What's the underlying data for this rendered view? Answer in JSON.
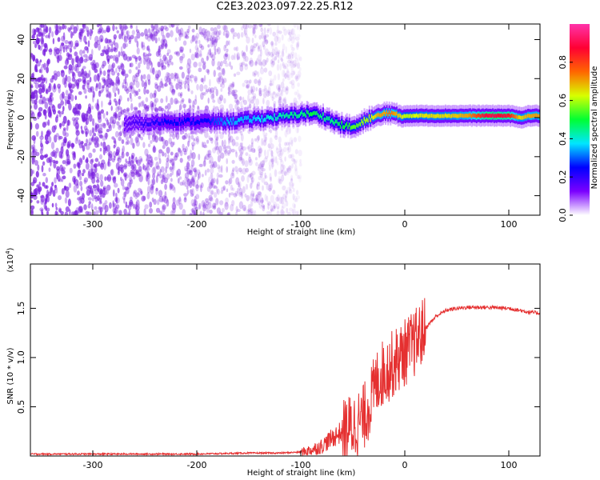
{
  "title": "C2E3.2023.097.22.25.R12",
  "colors": {
    "snr_line": "#e53030",
    "speckle": "#7a1fe0",
    "colormap": [
      "#ffffff",
      "#7b00ff",
      "#0000ff",
      "#00e6ff",
      "#00ff33",
      "#d8ff00",
      "#ff6600",
      "#ff0033",
      "#ff33aa"
    ]
  },
  "chart_data": [
    {
      "type": "heatmap",
      "xlabel": "Height of straight line (km)",
      "ylabel": "Frequency (Hz)",
      "xlim": [
        -360,
        130
      ],
      "ylim": [
        -50,
        48
      ],
      "x_ticks": [
        -300,
        -200,
        -100,
        0,
        100
      ],
      "x_tick_labels": [
        "-300",
        "-200",
        "-100",
        "0",
        "100"
      ],
      "y_ticks": [
        -40,
        -20,
        0,
        20,
        40
      ],
      "y_tick_labels": [
        "-40",
        "-20",
        "0",
        "20",
        "40"
      ],
      "colorbar": {
        "label": "Normalized spectral amplitude",
        "range": [
          0.0,
          1.0
        ],
        "ticks": [
          0.0,
          0.2,
          0.4,
          0.6,
          0.8
        ],
        "tick_labels": [
          "0.0",
          "0.2",
          "0.4",
          "0.6",
          "0.8"
        ]
      },
      "signal_trace": {
        "x": [
          -270,
          -250,
          -230,
          -210,
          -190,
          -170,
          -150,
          -130,
          -110,
          -100,
          -90,
          -80,
          -70,
          -60,
          -50,
          -45,
          -40,
          -35,
          -30,
          -25,
          -20,
          -15,
          -10,
          -5,
          0,
          20,
          40,
          60,
          80,
          100,
          110,
          120,
          130
        ],
        "frequency": [
          -3,
          -3,
          -2,
          -2,
          -2,
          -2,
          -1,
          0,
          1,
          2,
          2,
          1,
          -2,
          -4,
          -5,
          -4,
          -2,
          0,
          0,
          1,
          2,
          3,
          1,
          1,
          1,
          1,
          1,
          1,
          1,
          1,
          0,
          1,
          1
        ],
        "amplitude": [
          0.15,
          0.2,
          0.25,
          0.25,
          0.25,
          0.35,
          0.35,
          0.4,
          0.45,
          0.45,
          0.5,
          0.45,
          0.45,
          0.5,
          0.55,
          0.55,
          0.6,
          0.6,
          0.65,
          0.7,
          0.7,
          0.75,
          0.7,
          0.65,
          0.6,
          0.65,
          0.65,
          0.7,
          0.9,
          0.85,
          0.65,
          0.7,
          0.7
        ]
      },
      "noise": {
        "x_start": -360,
        "x_end": -100,
        "amplitude": [
          0.05,
          0.25
        ]
      }
    },
    {
      "type": "line",
      "xlabel": "Height of straight line (km)",
      "ylabel": "SNR (10 * v/v)",
      "y_multiplier": "(x10",
      "y_multiplier_exp": "4",
      "y_multiplier_close": ")",
      "xlim": [
        -360,
        130
      ],
      "ylim": [
        0,
        1.95
      ],
      "x_ticks": [
        -300,
        -200,
        -100,
        0,
        100
      ],
      "x_tick_labels": [
        "-300",
        "-200",
        "-100",
        "0",
        "100"
      ],
      "y_ticks": [
        0.5,
        1.0,
        1.5
      ],
      "y_tick_labels": [
        "0.5",
        "1.0",
        "1.5"
      ],
      "series": [
        {
          "x": [
            -360,
            -300,
            -250,
            -200,
            -150,
            -120,
            -100,
            -90,
            -80,
            -70,
            -60,
            -50,
            -40,
            -35,
            -30,
            -25,
            -20,
            -15,
            -10,
            -5,
            0,
            10,
            20,
            30,
            40,
            50,
            60,
            80,
            100,
            120,
            130
          ],
          "y": [
            0.02,
            0.02,
            0.02,
            0.02,
            0.03,
            0.03,
            0.04,
            0.06,
            0.1,
            0.18,
            0.25,
            0.3,
            0.38,
            0.5,
            0.65,
            0.8,
            0.85,
            0.9,
            0.95,
            1.0,
            1.05,
            1.15,
            1.3,
            1.42,
            1.48,
            1.5,
            1.51,
            1.51,
            1.5,
            1.46,
            1.45
          ]
        }
      ]
    }
  ]
}
